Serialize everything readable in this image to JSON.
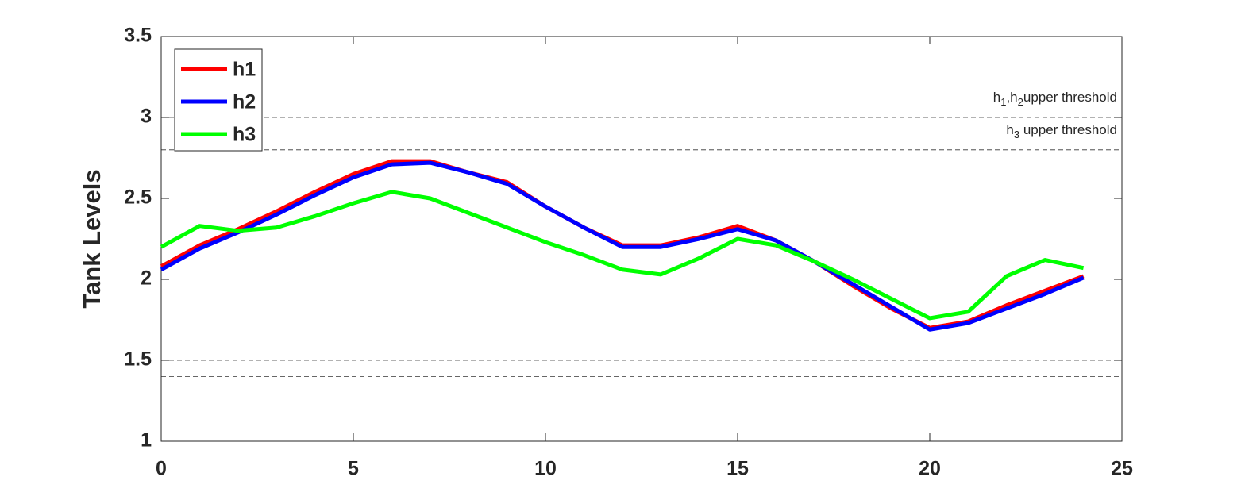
{
  "chart_data": {
    "type": "line",
    "ylabel": "Tank Levels",
    "x": [
      0,
      1,
      2,
      3,
      4,
      5,
      6,
      7,
      8,
      9,
      10,
      11,
      12,
      13,
      14,
      15,
      16,
      17,
      18,
      19,
      20,
      21,
      22,
      23,
      24
    ],
    "series": [
      {
        "name": "h1",
        "color": "#ff0000",
        "values": [
          2.08,
          2.21,
          2.31,
          2.42,
          2.54,
          2.65,
          2.73,
          2.73,
          2.66,
          2.6,
          2.45,
          2.32,
          2.21,
          2.21,
          2.26,
          2.33,
          2.24,
          2.11,
          1.96,
          1.82,
          1.7,
          1.74,
          1.84,
          1.93,
          2.02
        ]
      },
      {
        "name": "h2",
        "color": "#0000ff",
        "values": [
          2.06,
          2.19,
          2.29,
          2.4,
          2.52,
          2.63,
          2.71,
          2.72,
          2.66,
          2.59,
          2.45,
          2.32,
          2.2,
          2.2,
          2.25,
          2.31,
          2.24,
          2.11,
          1.97,
          1.83,
          1.69,
          1.73,
          1.82,
          1.91,
          2.01
        ]
      },
      {
        "name": "h3",
        "color": "#00ff00",
        "values": [
          2.2,
          2.33,
          2.3,
          2.32,
          2.39,
          2.47,
          2.54,
          2.5,
          2.41,
          2.32,
          2.23,
          2.15,
          2.06,
          2.03,
          2.13,
          2.25,
          2.21,
          2.11,
          2.0,
          1.88,
          1.76,
          1.8,
          2.02,
          2.12,
          2.07
        ]
      }
    ],
    "thresholds": [
      3,
      2.8,
      1.5,
      1.4
    ],
    "annotations": [
      {
        "y": 3,
        "parts": [
          {
            "text": "h",
            "sub": false
          },
          {
            "text": "1",
            "sub": true
          },
          {
            "text": ",h",
            "sub": false
          },
          {
            "text": "2",
            "sub": true
          },
          {
            "text": "upper threshold",
            "sub": false
          }
        ]
      },
      {
        "y": 2.8,
        "parts": [
          {
            "text": "h",
            "sub": false
          },
          {
            "text": "3",
            "sub": true
          },
          {
            "text": " upper threshold",
            "sub": false
          }
        ]
      }
    ],
    "xlim": [
      0,
      25
    ],
    "xticks": [
      0,
      5,
      10,
      15,
      20,
      25
    ],
    "ylim": [
      1,
      3.5
    ],
    "yticks": [
      1,
      {
        "value": 1.5,
        "label": "1.5"
      },
      2,
      {
        "value": 2.5,
        "label": "2.5"
      },
      3,
      {
        "value": 3.5,
        "label": "3.5"
      }
    ],
    "legend": "upper left"
  }
}
